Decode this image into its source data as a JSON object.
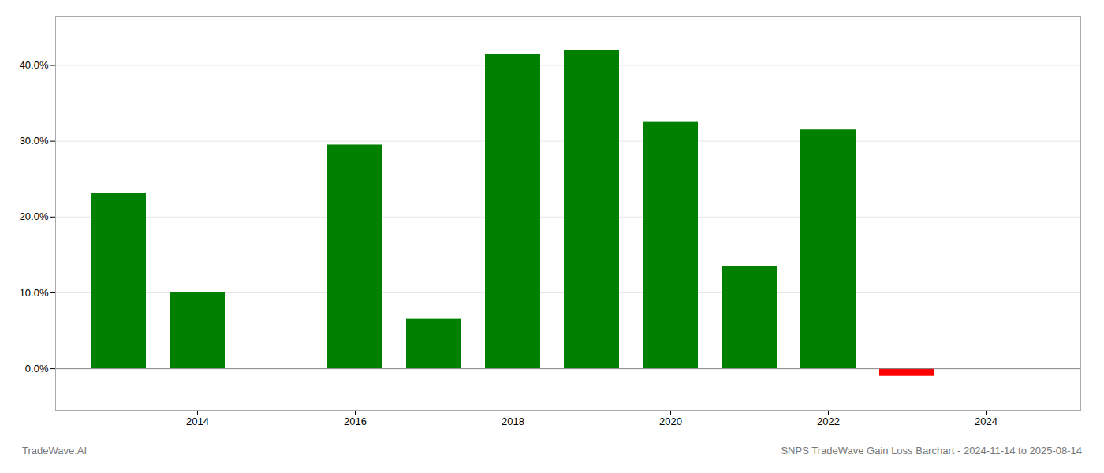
{
  "chart_data": {
    "type": "bar",
    "x": [
      2013,
      2014,
      2016,
      2017,
      2018,
      2019,
      2020,
      2021,
      2022,
      2023
    ],
    "values": [
      0.231,
      0.1,
      0.295,
      0.065,
      0.415,
      0.42,
      0.325,
      0.135,
      0.315,
      -0.01
    ],
    "colors": [
      "#008000",
      "#008000",
      "#008000",
      "#008000",
      "#008000",
      "#008000",
      "#008000",
      "#008000",
      "#008000",
      "#ff0000"
    ],
    "xlim": [
      2012.2,
      2025.2
    ],
    "xticks": [
      2014,
      2016,
      2018,
      2020,
      2022,
      2024
    ],
    "ylim": [
      -0.055,
      0.465
    ],
    "yticks": [
      {
        "value": 0.0,
        "label": "0.0%"
      },
      {
        "value": 0.1,
        "label": "10.0%"
      },
      {
        "value": 0.2,
        "label": "20.0%"
      },
      {
        "value": 0.3,
        "label": "30.0%"
      },
      {
        "value": 0.4,
        "label": "40.0%"
      }
    ],
    "grid": true,
    "annotations": [
      "TradeWave.AI",
      "SNPS TradeWave Gain Loss Barchart - 2024-11-14 to 2025-08-14"
    ]
  }
}
